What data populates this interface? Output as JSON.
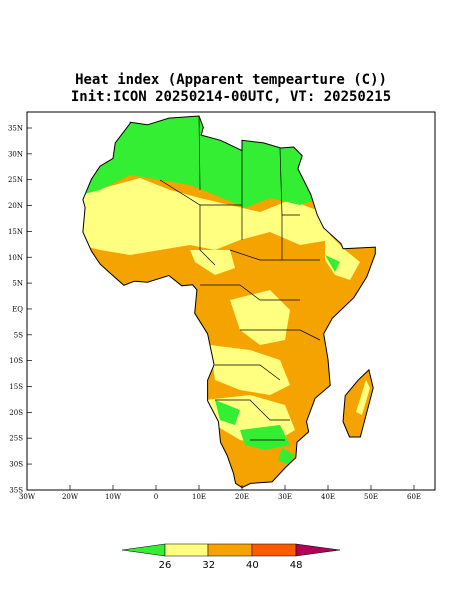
{
  "title": {
    "line1": "Heat index (Apparent tempearture (C))",
    "line2": "Init:ICON 20250214-00UTC, VT: 20250215"
  },
  "map": {
    "lon_labels": [
      "30W",
      "20W",
      "10W",
      "0",
      "10E",
      "20E",
      "30E",
      "40E",
      "50E",
      "60E"
    ],
    "lat_labels": [
      "35N",
      "30N",
      "25N",
      "20N",
      "15N",
      "10N",
      "5N",
      "EQ",
      "5S",
      "10S",
      "15S",
      "20S",
      "25S",
      "30S",
      "35S"
    ]
  },
  "colorbar": {
    "labels": [
      "26",
      "32",
      "40",
      "48"
    ]
  }
}
